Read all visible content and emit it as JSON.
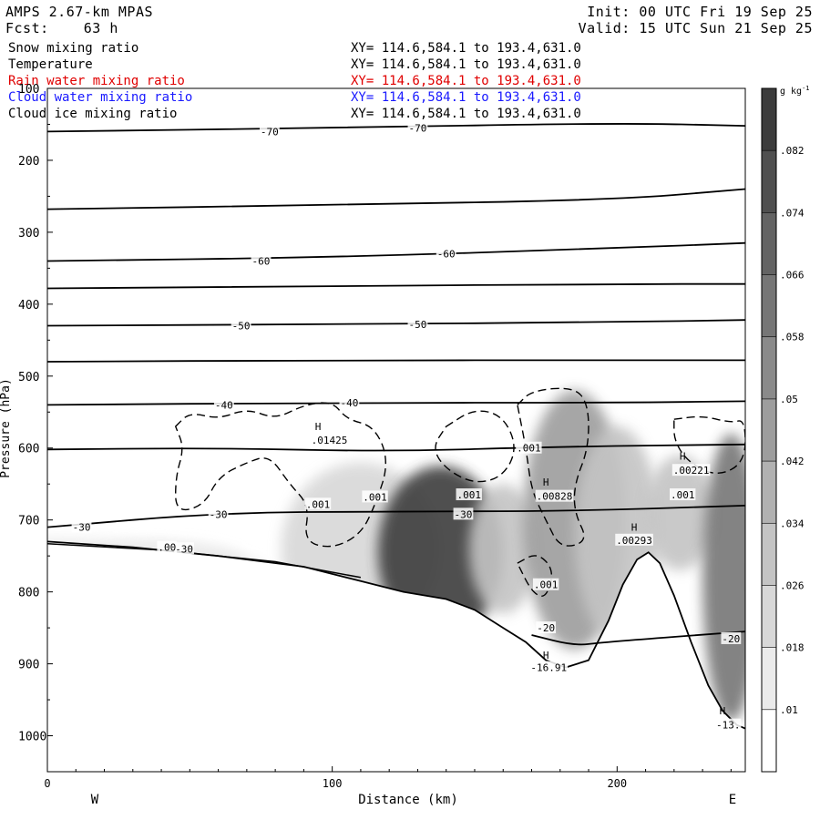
{
  "header": {
    "model": "AMPS 2.67-km MPAS",
    "forecast_label": "Fcst:",
    "forecast_hours": "63 h",
    "init": "Init: 00 UTC Fri 19 Sep 25",
    "valid": "Valid: 15 UTC Sun 21 Sep 25"
  },
  "fields": [
    {
      "name": "Snow mixing ratio",
      "xy": "XY= 114.6,584.1 to 193.4,631.0",
      "color": "#000000"
    },
    {
      "name": "Temperature",
      "xy": "XY= 114.6,584.1 to 193.4,631.0",
      "color": "#000000"
    },
    {
      "name": "Rain water mixing ratio",
      "xy": "XY= 114.6,584.1 to 193.4,631.0",
      "color": "#e00000"
    },
    {
      "name": "Cloud water mixing ratio",
      "xy": "XY= 114.6,584.1 to 193.4,631.0",
      "color": "#1a1aff"
    },
    {
      "name": "Cloud ice mixing ratio",
      "xy": "XY= 114.6,584.1 to 193.4,631.0",
      "color": "#000000"
    }
  ],
  "chart_data": {
    "type": "heatmap",
    "xlabel": "Distance (km)",
    "ylabel": "Pressure (hPa)",
    "xlim": [
      0,
      245
    ],
    "ylim": [
      1050,
      100
    ],
    "x_ticks": [
      0,
      100,
      200
    ],
    "y_ticks": [
      100,
      200,
      300,
      400,
      500,
      600,
      700,
      800,
      900,
      1000
    ],
    "x_ends": {
      "left": "W",
      "right": "E"
    },
    "colorbar": {
      "unit": "g kg",
      "unit_exponent": "-1",
      "levels": [
        0.01,
        0.018,
        0.026,
        0.034,
        0.042,
        0.05,
        0.058,
        0.066,
        0.074,
        0.082
      ],
      "tick_labels": [
        ".01",
        ".018",
        ".026",
        ".034",
        ".042",
        ".05",
        ".058",
        ".066",
        ".074",
        ".082"
      ]
    },
    "temperature_contours": [
      {
        "label": "-70",
        "points": [
          [
            0,
            160
          ],
          [
            100,
            155
          ],
          [
            200,
            148
          ],
          [
            245,
            152
          ]
        ]
      },
      {
        "label": "",
        "points": [
          [
            0,
            268
          ],
          [
            100,
            262
          ],
          [
            200,
            255
          ],
          [
            245,
            240
          ]
        ]
      },
      {
        "label": "-60",
        "points": [
          [
            0,
            340
          ],
          [
            100,
            335
          ],
          [
            200,
            322
          ],
          [
            245,
            315
          ]
        ]
      },
      {
        "label": "",
        "points": [
          [
            0,
            378
          ],
          [
            100,
            375
          ],
          [
            200,
            372
          ],
          [
            245,
            372
          ]
        ]
      },
      {
        "label": "-50",
        "points": [
          [
            0,
            430
          ],
          [
            100,
            428
          ],
          [
            200,
            425
          ],
          [
            245,
            422
          ]
        ]
      },
      {
        "label": "",
        "points": [
          [
            0,
            480
          ],
          [
            100,
            478
          ],
          [
            200,
            478
          ],
          [
            245,
            478
          ]
        ]
      },
      {
        "label": "-40",
        "points": [
          [
            0,
            540
          ],
          [
            100,
            537
          ],
          [
            200,
            537
          ],
          [
            245,
            535
          ]
        ]
      },
      {
        "label": "",
        "points": [
          [
            0,
            602
          ],
          [
            60,
            600
          ],
          [
            120,
            605
          ],
          [
            180,
            598
          ],
          [
            245,
            595
          ]
        ]
      },
      {
        "label": "-30",
        "points": [
          [
            0,
            710
          ],
          [
            60,
            690
          ],
          [
            120,
            688
          ],
          [
            180,
            688
          ],
          [
            245,
            680
          ]
        ]
      },
      {
        "label": "-20",
        "points": [
          [
            170,
            860
          ],
          [
            185,
            875
          ],
          [
            195,
            870
          ],
          [
            245,
            855
          ]
        ]
      }
    ],
    "contour_labels": [
      {
        "text": "-70",
        "x": 78,
        "p": 160
      },
      {
        "text": "-70",
        "x": 130,
        "p": 155
      },
      {
        "text": "-60",
        "x": 75,
        "p": 340
      },
      {
        "text": "-60",
        "x": 140,
        "p": 330
      },
      {
        "text": "-50",
        "x": 68,
        "p": 430
      },
      {
        "text": "-50",
        "x": 130,
        "p": 428
      },
      {
        "text": "-40",
        "x": 62,
        "p": 540
      },
      {
        "text": "-40",
        "x": 106,
        "p": 537
      },
      {
        "text": "-30",
        "x": 60,
        "p": 692
      },
      {
        "text": "-30",
        "x": 12,
        "p": 710
      },
      {
        "text": "-30",
        "x": 146,
        "p": 692
      },
      {
        "text": "-30",
        "x": 48,
        "p": 740
      },
      {
        "text": "-20",
        "x": 175,
        "p": 850
      },
      {
        "text": "-20",
        "x": 240,
        "p": 865
      },
      {
        "text": ".001",
        "x": 95,
        "p": 678
      },
      {
        "text": ".001",
        "x": 115,
        "p": 668
      },
      {
        "text": ".001",
        "x": 148,
        "p": 665
      },
      {
        "text": ".001",
        "x": 169,
        "p": 600
      },
      {
        "text": ".001",
        "x": 175,
        "p": 790
      },
      {
        "text": ".001",
        "x": 223,
        "p": 665
      },
      {
        "text": ".00",
        "x": 42,
        "p": 738
      },
      {
        "text": ".01425",
        "x": 99,
        "p": 589
      },
      {
        "text": ".00828",
        "x": 178,
        "p": 667
      },
      {
        "text": ".00221",
        "x": 226,
        "p": 631
      },
      {
        "text": ".00293",
        "x": 206,
        "p": 728
      },
      {
        "text": "-16.91",
        "x": 176,
        "p": 905
      },
      {
        "text": "-13.",
        "x": 239,
        "p": 985
      }
    ],
    "extrema_markers": [
      {
        "text": "H",
        "x": 95,
        "p": 570
      },
      {
        "text": "H",
        "x": 175,
        "p": 647
      },
      {
        "text": "H",
        "x": 223,
        "p": 611
      },
      {
        "text": "H",
        "x": 206,
        "p": 710
      },
      {
        "text": "H",
        "x": 175,
        "p": 888
      },
      {
        "text": "H",
        "x": 237,
        "p": 965
      }
    ],
    "shaded_blobs": [
      {
        "x": 0,
        "p": 780,
        "rx": 80,
        "rp": 55,
        "value": 0.012
      },
      {
        "x": 40,
        "p": 760,
        "rx": 30,
        "rp": 30,
        "value": 0.016
      },
      {
        "x": 110,
        "p": 740,
        "rx": 28,
        "rp": 120,
        "value": 0.02
      },
      {
        "x": 138,
        "p": 745,
        "rx": 22,
        "rp": 120,
        "value": 0.088
      },
      {
        "x": 160,
        "p": 740,
        "rx": 12,
        "rp": 90,
        "value": 0.03
      },
      {
        "x": 185,
        "p": 700,
        "rx": 18,
        "rp": 180,
        "value": 0.045
      },
      {
        "x": 200,
        "p": 720,
        "rx": 15,
        "rp": 150,
        "value": 0.03
      },
      {
        "x": 222,
        "p": 690,
        "rx": 12,
        "rp": 80,
        "value": 0.028
      },
      {
        "x": 240,
        "p": 780,
        "rx": 10,
        "rp": 200,
        "value": 0.06
      }
    ],
    "dashed_contours": [
      [
        [
          45,
          570
        ],
        [
          50,
          550
        ],
        [
          60,
          560
        ],
        [
          70,
          545
        ],
        [
          80,
          560
        ],
        [
          90,
          540
        ],
        [
          100,
          535
        ],
        [
          105,
          560
        ],
        [
          115,
          570
        ],
        [
          120,
          620
        ],
        [
          115,
          680
        ],
        [
          110,
          720
        ],
        [
          100,
          740
        ],
        [
          90,
          730
        ],
        [
          92,
          680
        ],
        [
          85,
          650
        ],
        [
          78,
          610
        ],
        [
          70,
          620
        ],
        [
          60,
          640
        ],
        [
          55,
          680
        ],
        [
          45,
          690
        ],
        [
          45,
          640
        ],
        [
          48,
          600
        ],
        [
          45,
          570
        ]
      ],
      [
        [
          140,
          570
        ],
        [
          150,
          545
        ],
        [
          160,
          555
        ],
        [
          165,
          600
        ],
        [
          160,
          640
        ],
        [
          150,
          650
        ],
        [
          140,
          630
        ],
        [
          135,
          600
        ],
        [
          140,
          570
        ]
      ],
      [
        [
          165,
          540
        ],
        [
          170,
          520
        ],
        [
          185,
          515
        ],
        [
          190,
          540
        ],
        [
          190,
          600
        ],
        [
          185,
          650
        ],
        [
          185,
          690
        ],
        [
          190,
          730
        ],
        [
          180,
          740
        ],
        [
          175,
          700
        ],
        [
          170,
          660
        ],
        [
          168,
          600
        ],
        [
          165,
          540
        ]
      ],
      [
        [
          220,
          560
        ],
        [
          230,
          555
        ],
        [
          240,
          565
        ],
        [
          245,
          560
        ],
        [
          245,
          620
        ],
        [
          235,
          640
        ],
        [
          225,
          620
        ],
        [
          220,
          590
        ],
        [
          220,
          560
        ]
      ],
      [
        [
          165,
          760
        ],
        [
          172,
          745
        ],
        [
          178,
          770
        ],
        [
          175,
          810
        ],
        [
          170,
          800
        ],
        [
          165,
          760
        ]
      ]
    ]
  }
}
